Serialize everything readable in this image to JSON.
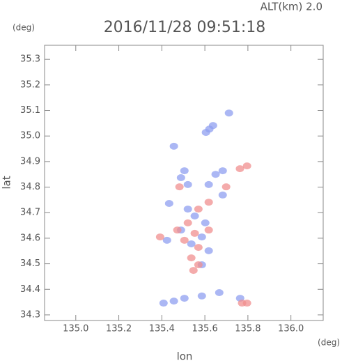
{
  "chart_data": {
    "type": "scatter",
    "title": "2016/11/28 09:51:18",
    "subtitle": "ALT(km) 2.0",
    "y_unit": "(deg)",
    "x_unit": "(deg)",
    "ylabel": "lat",
    "xlabel": "lon",
    "xlim": [
      134.855,
      136.15
    ],
    "ylim": [
      34.278,
      35.355
    ],
    "xticks": [
      {
        "value": 135,
        "label": "135.0"
      },
      135.2,
      135.4,
      135.6,
      135.8,
      {
        "value": 136,
        "label": "136.0"
      }
    ],
    "yticks": [
      34.3,
      34.4,
      34.5,
      34.6,
      34.7,
      34.8,
      34.9,
      {
        "value": 35,
        "label": "35.0"
      },
      35.1,
      35.2,
      35.3
    ],
    "series": [
      {
        "color": "#8f9ff0",
        "x": [
          135.621,
          135.638,
          135.605,
          135.712,
          135.456,
          135.505,
          135.489,
          135.521,
          135.618,
          135.65,
          135.683,
          135.683,
          135.434,
          135.521,
          135.553,
          135.602,
          135.489,
          135.586,
          135.537,
          135.424,
          135.618,
          135.586,
          135.408,
          135.456,
          135.505,
          135.586,
          135.667,
          135.764
        ],
        "values": [
          35.027,
          35.041,
          35.014,
          35.09,
          34.96,
          34.864,
          34.837,
          34.81,
          34.81,
          34.85,
          34.864,
          34.769,
          34.736,
          34.714,
          34.687,
          34.66,
          34.632,
          34.605,
          34.578,
          34.592,
          34.551,
          34.496,
          34.346,
          34.354,
          34.365,
          34.374,
          34.387,
          34.365
        ]
      },
      {
        "color": "#f08f8f",
        "x": [
          135.57,
          135.521,
          135.472,
          135.553,
          135.618,
          135.505,
          135.57,
          135.537,
          135.57,
          135.547,
          135.392,
          135.796,
          135.763,
          135.699,
          135.482,
          135.773,
          135.796,
          135.618
        ],
        "values": [
          34.714,
          34.66,
          34.632,
          34.619,
          34.632,
          34.592,
          34.564,
          34.523,
          34.496,
          34.474,
          34.605,
          34.883,
          34.872,
          34.801,
          34.801,
          34.346,
          34.346,
          34.741
        ]
      }
    ]
  }
}
